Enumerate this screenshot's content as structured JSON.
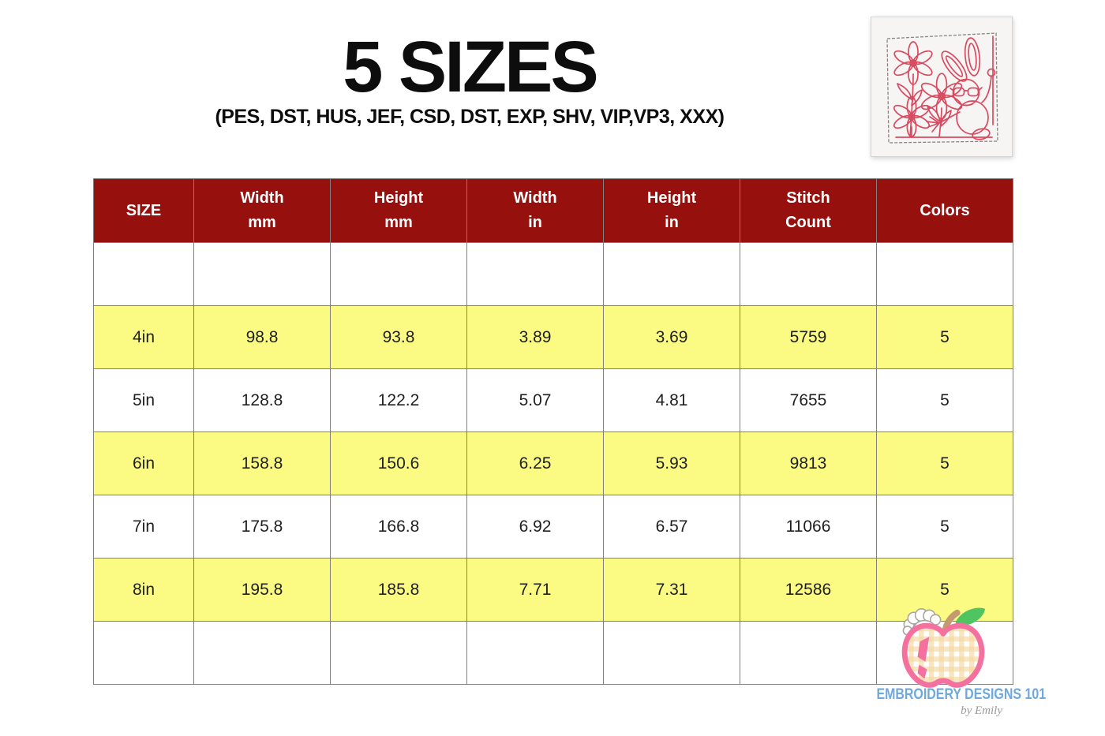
{
  "page": {
    "title": "5 SIZES",
    "subtitle": "(PES, DST, HUS, JEF, CSD, DST, EXP, SHV, VIP,VP3, XXX)"
  },
  "preview": {
    "alt": "Redwork embroidery preview: bunny with sunglasses on a swing beside daisy flowers"
  },
  "chart_data": {
    "type": "table",
    "title": "5 SIZES",
    "columns": [
      {
        "key": "size",
        "label": "SIZE"
      },
      {
        "key": "width-mm",
        "label": "Width\nmm"
      },
      {
        "key": "height-mm",
        "label": "Height\nmm"
      },
      {
        "key": "width-in",
        "label": "Width\nin"
      },
      {
        "key": "height-in",
        "label": "Height\nin"
      },
      {
        "key": "stitch-count",
        "label": "Stitch\nCount"
      },
      {
        "key": "colors",
        "label": "Colors"
      }
    ],
    "rows": [
      {
        "cells": [
          "",
          "",
          "",
          "",
          "",
          "",
          ""
        ],
        "highlighted": false
      },
      {
        "cells": [
          "4in",
          "98.8",
          "93.8",
          "3.89",
          "3.69",
          "5759",
          "5"
        ],
        "highlighted": true
      },
      {
        "cells": [
          "5in",
          "128.8",
          "122.2",
          "5.07",
          "4.81",
          "7655",
          "5"
        ],
        "highlighted": false
      },
      {
        "cells": [
          "6in",
          "158.8",
          "150.6",
          "6.25",
          "5.93",
          "9813",
          "5"
        ],
        "highlighted": true
      },
      {
        "cells": [
          "7in",
          "175.8",
          "166.8",
          "6.92",
          "6.57",
          "11066",
          "5"
        ],
        "highlighted": false
      },
      {
        "cells": [
          "8in",
          "195.8",
          "185.8",
          "7.71",
          "7.31",
          "12586",
          "5"
        ],
        "highlighted": true
      },
      {
        "cells": [
          "",
          "",
          "",
          "",
          "",
          "",
          ""
        ],
        "highlighted": false
      }
    ]
  },
  "branding": {
    "name": "EMBROIDERY DESIGNS 101",
    "byline": "by Emily"
  },
  "colors": {
    "header_bg": "#96100d",
    "header_text": "#ffffff",
    "row_highlight": "#fbfa82",
    "table_border": "#7f7f7f",
    "cell_text": "#1f1f1f",
    "title_text": "#0d0d0d",
    "logo_blue": "#6fa8dc",
    "byline_gray": "#9a9a9a",
    "redwork_red": "#d84a60",
    "apple_pink": "#f4719f",
    "leaf_green": "#4ec561",
    "stem_tan": "#c49a70",
    "gingham_peach": "#f5d9a2"
  }
}
